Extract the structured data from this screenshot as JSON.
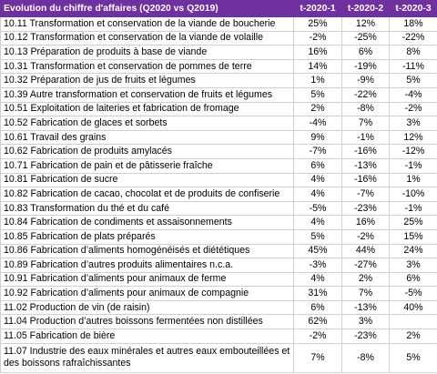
{
  "table": {
    "header": [
      "Evolution du chiffre d'affaires (Q2020 vs Q2019)",
      "t-2020-1",
      "t-2020-2",
      "t-2020-3"
    ],
    "rows": [
      [
        "10.11 Transformation et conservation de la viande de boucherie",
        "25%",
        "12%",
        "18%"
      ],
      [
        "10.12 Transformation et conservation de la viande de volaille",
        "-2%",
        "-25%",
        "-22%"
      ],
      [
        "10.13 Préparation de produits à base de viande",
        "16%",
        "6%",
        "8%"
      ],
      [
        "10.31 Transformation et conservation de pommes de terre",
        "14%",
        "-19%",
        "-11%"
      ],
      [
        "10.32 Préparation de jus de fruits et légumes",
        "1%",
        "-9%",
        "5%"
      ],
      [
        "10.39 Autre transformation et conservation de fruits et légumes",
        "5%",
        "-22%",
        "-4%"
      ],
      [
        "10.51 Exploitation de laiteries et fabrication de fromage",
        "2%",
        "-8%",
        "-2%"
      ],
      [
        "10.52 Fabrication de glaces et sorbets",
        "-4%",
        "7%",
        "3%"
      ],
      [
        "10.61 Travail des grains",
        "9%",
        "-1%",
        "12%"
      ],
      [
        "10.62 Fabrication de produits amylacés",
        "-7%",
        "-16%",
        "-12%"
      ],
      [
        "10.71 Fabrication de pain et de pâtisserie fraîche",
        "6%",
        "-13%",
        "-1%"
      ],
      [
        "10.81 Fabrication de sucre",
        "4%",
        "-16%",
        "1%"
      ],
      [
        "10.82 Fabrication de cacao, chocolat et de produits de confiserie",
        "4%",
        "-7%",
        "-10%"
      ],
      [
        "10.83 Transformation du thé et du café",
        "-5%",
        "-23%",
        "-1%"
      ],
      [
        "10.84 Fabrication de condiments et assaisonnements",
        "4%",
        "16%",
        "25%"
      ],
      [
        "10.85 Fabrication de plats préparés",
        "5%",
        "-2%",
        "15%"
      ],
      [
        "10.86 Fabrication d’aliments homogénéisés et diététiques",
        "45%",
        "44%",
        "24%"
      ],
      [
        "10.89 Fabrication d’autres produits alimentaires n.c.a.",
        "-3%",
        "-27%",
        "3%"
      ],
      [
        "10.91 Fabrication d’aliments pour animaux de ferme",
        "4%",
        "2%",
        "6%"
      ],
      [
        "10.92 Fabrication d’aliments pour animaux de compagnie",
        "31%",
        "7%",
        "-5%"
      ],
      [
        "11.02 Production de vin (de raisin)",
        "6%",
        "-13%",
        "40%"
      ],
      [
        "11.04 Production d’autres boissons fermentées non distillées",
        "62%",
        "3%",
        null
      ],
      [
        "11.05 Fabrication de bière",
        "-2%",
        "-23%",
        "2%"
      ],
      [
        "11.07 Industrie des eaux minérales et autres eaux embouteillées et des boissons rafraîchissantes",
        "7%",
        "-8%",
        "5%"
      ]
    ]
  }
}
